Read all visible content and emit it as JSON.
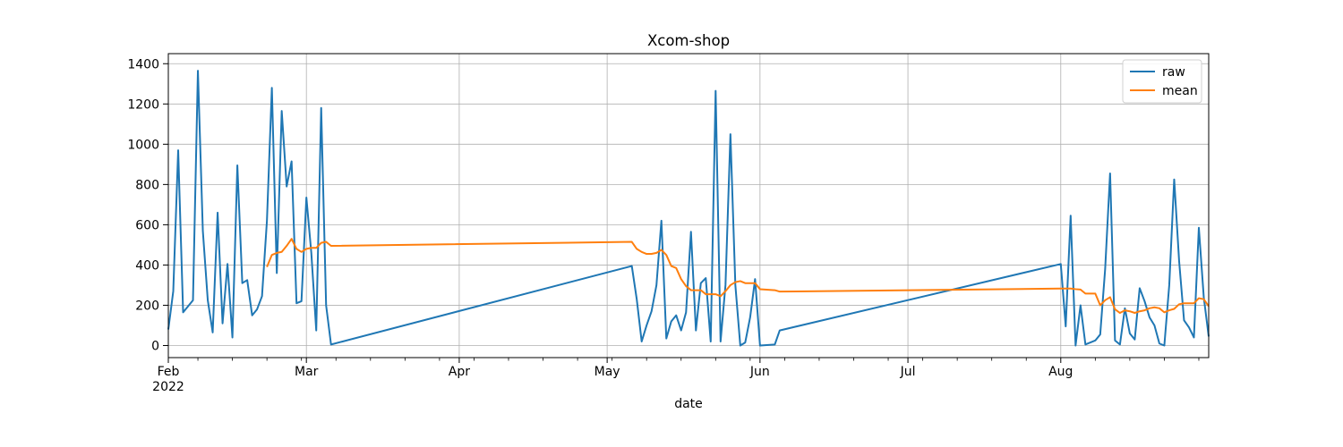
{
  "chart_data": {
    "type": "line",
    "title": "Xcom-shop",
    "xlabel": "date",
    "ylabel": "",
    "xlim": [
      "2022-02-01",
      "2022-08-31"
    ],
    "ylim": [
      -60,
      1450
    ],
    "grid": true,
    "legend_position": "top-right",
    "x_major_ticks": [
      {
        "date": "2022-02-01",
        "label": "Feb",
        "sublabel": "2022"
      },
      {
        "date": "2022-03-01",
        "label": "Mar"
      },
      {
        "date": "2022-04-01",
        "label": "Apr"
      },
      {
        "date": "2022-05-01",
        "label": "May"
      },
      {
        "date": "2022-06-01",
        "label": "Jun"
      },
      {
        "date": "2022-07-01",
        "label": "Jul"
      },
      {
        "date": "2022-08-01",
        "label": "Aug"
      }
    ],
    "y_ticks": [
      {
        "value": 0,
        "label": "0"
      },
      {
        "value": 200,
        "label": "200"
      },
      {
        "value": 400,
        "label": "400"
      },
      {
        "value": 600,
        "label": "600"
      },
      {
        "value": 800,
        "label": "800"
      },
      {
        "value": 1000,
        "label": "1000"
      },
      {
        "value": 1200,
        "label": "1200"
      },
      {
        "value": 1400,
        "label": "1400"
      }
    ],
    "series": [
      {
        "name": "raw",
        "color": "#1f77b4",
        "points": [
          [
            "2022-02-01",
            80
          ],
          [
            "2022-02-02",
            270
          ],
          [
            "2022-02-03",
            970
          ],
          [
            "2022-02-04",
            165
          ],
          [
            "2022-02-06",
            225
          ],
          [
            "2022-02-07",
            1365
          ],
          [
            "2022-02-08",
            570
          ],
          [
            "2022-02-09",
            225
          ],
          [
            "2022-02-10",
            65
          ],
          [
            "2022-02-11",
            660
          ],
          [
            "2022-02-12",
            110
          ],
          [
            "2022-02-13",
            405
          ],
          [
            "2022-02-14",
            40
          ],
          [
            "2022-02-15",
            895
          ],
          [
            "2022-02-16",
            310
          ],
          [
            "2022-02-17",
            325
          ],
          [
            "2022-02-18",
            150
          ],
          [
            "2022-02-19",
            180
          ],
          [
            "2022-02-20",
            245
          ],
          [
            "2022-02-21",
            620
          ],
          [
            "2022-02-22",
            1280
          ],
          [
            "2022-02-23",
            360
          ],
          [
            "2022-02-24",
            1165
          ],
          [
            "2022-02-25",
            790
          ],
          [
            "2022-02-26",
            915
          ],
          [
            "2022-02-27",
            210
          ],
          [
            "2022-02-28",
            220
          ],
          [
            "2022-03-01",
            735
          ],
          [
            "2022-03-02",
            460
          ],
          [
            "2022-03-03",
            75
          ],
          [
            "2022-03-04",
            1180
          ],
          [
            "2022-03-05",
            200
          ],
          [
            "2022-03-06",
            5
          ],
          [
            "2022-05-06",
            395
          ],
          [
            "2022-05-07",
            230
          ],
          [
            "2022-05-08",
            20
          ],
          [
            "2022-05-09",
            100
          ],
          [
            "2022-05-10",
            170
          ],
          [
            "2022-05-11",
            300
          ],
          [
            "2022-05-12",
            620
          ],
          [
            "2022-05-13",
            35
          ],
          [
            "2022-05-14",
            120
          ],
          [
            "2022-05-15",
            150
          ],
          [
            "2022-05-16",
            75
          ],
          [
            "2022-05-17",
            165
          ],
          [
            "2022-05-18",
            565
          ],
          [
            "2022-05-19",
            75
          ],
          [
            "2022-05-20",
            310
          ],
          [
            "2022-05-21",
            335
          ],
          [
            "2022-05-22",
            20
          ],
          [
            "2022-05-23",
            1265
          ],
          [
            "2022-05-24",
            20
          ],
          [
            "2022-05-25",
            300
          ],
          [
            "2022-05-26",
            1050
          ],
          [
            "2022-05-27",
            300
          ],
          [
            "2022-05-28",
            0
          ],
          [
            "2022-05-29",
            15
          ],
          [
            "2022-05-30",
            140
          ],
          [
            "2022-05-31",
            330
          ],
          [
            "2022-06-01",
            0
          ],
          [
            "2022-06-04",
            5
          ],
          [
            "2022-06-05",
            75
          ],
          [
            "2022-08-01",
            405
          ],
          [
            "2022-08-02",
            95
          ],
          [
            "2022-08-03",
            645
          ],
          [
            "2022-08-04",
            0
          ],
          [
            "2022-08-05",
            200
          ],
          [
            "2022-08-06",
            5
          ],
          [
            "2022-08-08",
            25
          ],
          [
            "2022-08-09",
            55
          ],
          [
            "2022-08-10",
            380
          ],
          [
            "2022-08-11",
            855
          ],
          [
            "2022-08-12",
            25
          ],
          [
            "2022-08-13",
            5
          ],
          [
            "2022-08-14",
            185
          ],
          [
            "2022-08-15",
            60
          ],
          [
            "2022-08-16",
            30
          ],
          [
            "2022-08-17",
            285
          ],
          [
            "2022-08-18",
            220
          ],
          [
            "2022-08-19",
            140
          ],
          [
            "2022-08-20",
            100
          ],
          [
            "2022-08-21",
            10
          ],
          [
            "2022-08-22",
            0
          ],
          [
            "2022-08-23",
            300
          ],
          [
            "2022-08-24",
            825
          ],
          [
            "2022-08-25",
            420
          ],
          [
            "2022-08-26",
            125
          ],
          [
            "2022-08-27",
            90
          ],
          [
            "2022-08-28",
            40
          ],
          [
            "2022-08-29",
            585
          ],
          [
            "2022-08-30",
            240
          ],
          [
            "2022-08-31",
            45
          ]
        ]
      },
      {
        "name": "mean",
        "color": "#ff7f0e",
        "points": [
          [
            "2022-02-21",
            390
          ],
          [
            "2022-02-22",
            450
          ],
          [
            "2022-02-23",
            460
          ],
          [
            "2022-02-24",
            465
          ],
          [
            "2022-02-25",
            495
          ],
          [
            "2022-02-26",
            530
          ],
          [
            "2022-02-27",
            480
          ],
          [
            "2022-02-28",
            465
          ],
          [
            "2022-03-01",
            480
          ],
          [
            "2022-03-02",
            485
          ],
          [
            "2022-03-03",
            485
          ],
          [
            "2022-03-04",
            510
          ],
          [
            "2022-03-05",
            515
          ],
          [
            "2022-03-06",
            495
          ],
          [
            "2022-05-06",
            515
          ],
          [
            "2022-05-07",
            480
          ],
          [
            "2022-05-08",
            465
          ],
          [
            "2022-05-09",
            455
          ],
          [
            "2022-05-10",
            455
          ],
          [
            "2022-05-11",
            460
          ],
          [
            "2022-05-12",
            475
          ],
          [
            "2022-05-13",
            450
          ],
          [
            "2022-05-14",
            395
          ],
          [
            "2022-05-15",
            385
          ],
          [
            "2022-05-16",
            330
          ],
          [
            "2022-05-17",
            295
          ],
          [
            "2022-05-18",
            275
          ],
          [
            "2022-05-19",
            275
          ],
          [
            "2022-05-20",
            275
          ],
          [
            "2022-05-21",
            255
          ],
          [
            "2022-05-22",
            255
          ],
          [
            "2022-05-23",
            255
          ],
          [
            "2022-05-24",
            245
          ],
          [
            "2022-05-25",
            270
          ],
          [
            "2022-05-26",
            300
          ],
          [
            "2022-05-27",
            315
          ],
          [
            "2022-05-28",
            320
          ],
          [
            "2022-05-29",
            310
          ],
          [
            "2022-05-30",
            310
          ],
          [
            "2022-05-31",
            310
          ],
          [
            "2022-06-01",
            280
          ],
          [
            "2022-06-04",
            275
          ],
          [
            "2022-06-05",
            268
          ],
          [
            "2022-08-01",
            283
          ],
          [
            "2022-08-02",
            283
          ],
          [
            "2022-08-03",
            283
          ],
          [
            "2022-08-04",
            280
          ],
          [
            "2022-08-05",
            278
          ],
          [
            "2022-08-06",
            258
          ],
          [
            "2022-08-08",
            258
          ],
          [
            "2022-08-09",
            200
          ],
          [
            "2022-08-10",
            225
          ],
          [
            "2022-08-11",
            240
          ],
          [
            "2022-08-12",
            180
          ],
          [
            "2022-08-13",
            162
          ],
          [
            "2022-08-14",
            175
          ],
          [
            "2022-08-15",
            170
          ],
          [
            "2022-08-16",
            162
          ],
          [
            "2022-08-17",
            170
          ],
          [
            "2022-08-18",
            175
          ],
          [
            "2022-08-19",
            185
          ],
          [
            "2022-08-20",
            190
          ],
          [
            "2022-08-21",
            185
          ],
          [
            "2022-08-22",
            165
          ],
          [
            "2022-08-23",
            175
          ],
          [
            "2022-08-24",
            182
          ],
          [
            "2022-08-25",
            205
          ],
          [
            "2022-08-26",
            210
          ],
          [
            "2022-08-27",
            210
          ],
          [
            "2022-08-28",
            210
          ],
          [
            "2022-08-29",
            235
          ],
          [
            "2022-08-30",
            230
          ],
          [
            "2022-08-31",
            195
          ]
        ]
      }
    ]
  }
}
